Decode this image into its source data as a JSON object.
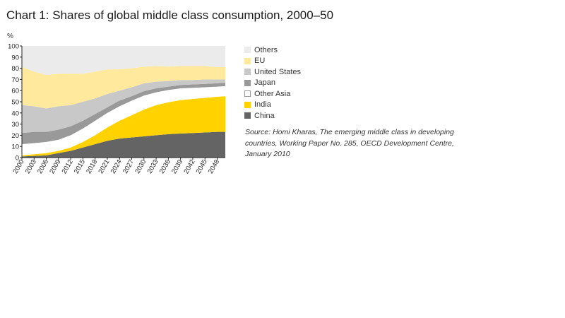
{
  "chart_data": {
    "type": "area",
    "title": "Chart 1: Shares of global middle class consumption, 2000–50",
    "ylabel": "%",
    "xlabel": "",
    "stacked": true,
    "ylim": [
      0,
      100
    ],
    "yticks": [
      0,
      10,
      20,
      30,
      40,
      50,
      60,
      70,
      80,
      90,
      100
    ],
    "x": [
      2000,
      2003,
      2006,
      2009,
      2012,
      2015,
      2018,
      2021,
      2024,
      2027,
      2030,
      2033,
      2036,
      2039,
      2042,
      2045,
      2048,
      2050
    ],
    "xticks": [
      2000,
      2003,
      2006,
      2009,
      2012,
      2015,
      2018,
      2021,
      2024,
      2027,
      2030,
      2033,
      2036,
      2039,
      2042,
      2045,
      2048
    ],
    "series": [
      {
        "name": "China",
        "color": "#646464",
        "values": [
          1,
          1.5,
          2,
          4,
          6,
          9,
          12,
          15,
          17,
          18,
          19,
          20,
          21,
          21.5,
          22,
          22.5,
          23,
          23
        ]
      },
      {
        "name": "India",
        "color": "#ffd200",
        "values": [
          1,
          1.5,
          2,
          2,
          3,
          5,
          8,
          12,
          16,
          20,
          24,
          27,
          28.5,
          30,
          30.5,
          31,
          31.5,
          32
        ]
      },
      {
        "name": "Other Asia",
        "color": "#ffffff",
        "values": [
          10,
          10,
          10,
          10,
          11,
          12,
          13,
          13,
          13,
          13,
          12.5,
          11.5,
          11,
          10.5,
          10,
          9.5,
          9,
          9
        ]
      },
      {
        "name": "Japan",
        "color": "#999999",
        "values": [
          10,
          10,
          9,
          9,
          8,
          7,
          6,
          5,
          5,
          4,
          4,
          3.5,
          3,
          3,
          3,
          3,
          3,
          3
        ]
      },
      {
        "name": "United States",
        "color": "#c8c8c8",
        "values": [
          25,
          23,
          21,
          21,
          19,
          17,
          14,
          12,
          9,
          8,
          7,
          6,
          5,
          4.5,
          4,
          4,
          3.5,
          3
        ]
      },
      {
        "name": "EU",
        "color": "#ffe99c",
        "values": [
          34,
          31,
          30,
          29,
          28,
          25,
          24,
          22,
          19,
          17,
          15,
          14,
          13,
          12.5,
          12.5,
          12,
          11,
          11
        ]
      },
      {
        "name": "Others",
        "color": "#ebebeb",
        "values": [
          19,
          23,
          26,
          25,
          25,
          25,
          23,
          21,
          21,
          20,
          18.5,
          18,
          18.5,
          18,
          18,
          18,
          19,
          19
        ]
      }
    ],
    "legend_order": [
      "Others",
      "EU",
      "United States",
      "Japan",
      "Other Asia",
      "India",
      "China"
    ],
    "legend_position": "right",
    "grid": false,
    "source": "Source: Homi Kharas, The emerging middle class in developing countries, Working Paper No. 285, OECD Development Centre, January 2010"
  }
}
